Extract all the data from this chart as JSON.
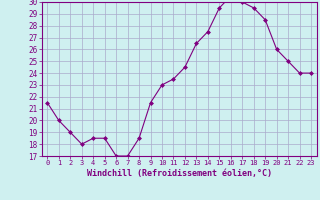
{
  "x": [
    0,
    1,
    2,
    3,
    4,
    5,
    6,
    7,
    8,
    9,
    10,
    11,
    12,
    13,
    14,
    15,
    16,
    17,
    18,
    19,
    20,
    21,
    22,
    23
  ],
  "y": [
    21.5,
    20.0,
    19.0,
    18.0,
    18.5,
    18.5,
    17.0,
    17.0,
    18.5,
    21.5,
    23.0,
    23.5,
    24.5,
    26.5,
    27.5,
    29.5,
    30.5,
    30.0,
    29.5,
    28.5,
    26.0,
    25.0,
    24.0,
    24.0
  ],
  "xlabel": "Windchill (Refroidissement éolien,°C)",
  "ylim": [
    17,
    30
  ],
  "xlim": [
    -0.5,
    23.5
  ],
  "yticks": [
    17,
    18,
    19,
    20,
    21,
    22,
    23,
    24,
    25,
    26,
    27,
    28,
    29,
    30
  ],
  "xticks": [
    0,
    1,
    2,
    3,
    4,
    5,
    6,
    7,
    8,
    9,
    10,
    11,
    12,
    13,
    14,
    15,
    16,
    17,
    18,
    19,
    20,
    21,
    22,
    23
  ],
  "line_color": "#800080",
  "marker": "D",
  "marker_size": 2,
  "bg_color": "#cff0f0",
  "grid_color": "#aaaacc",
  "xlabel_color": "#800080",
  "tick_color": "#800080",
  "spine_color": "#800080"
}
